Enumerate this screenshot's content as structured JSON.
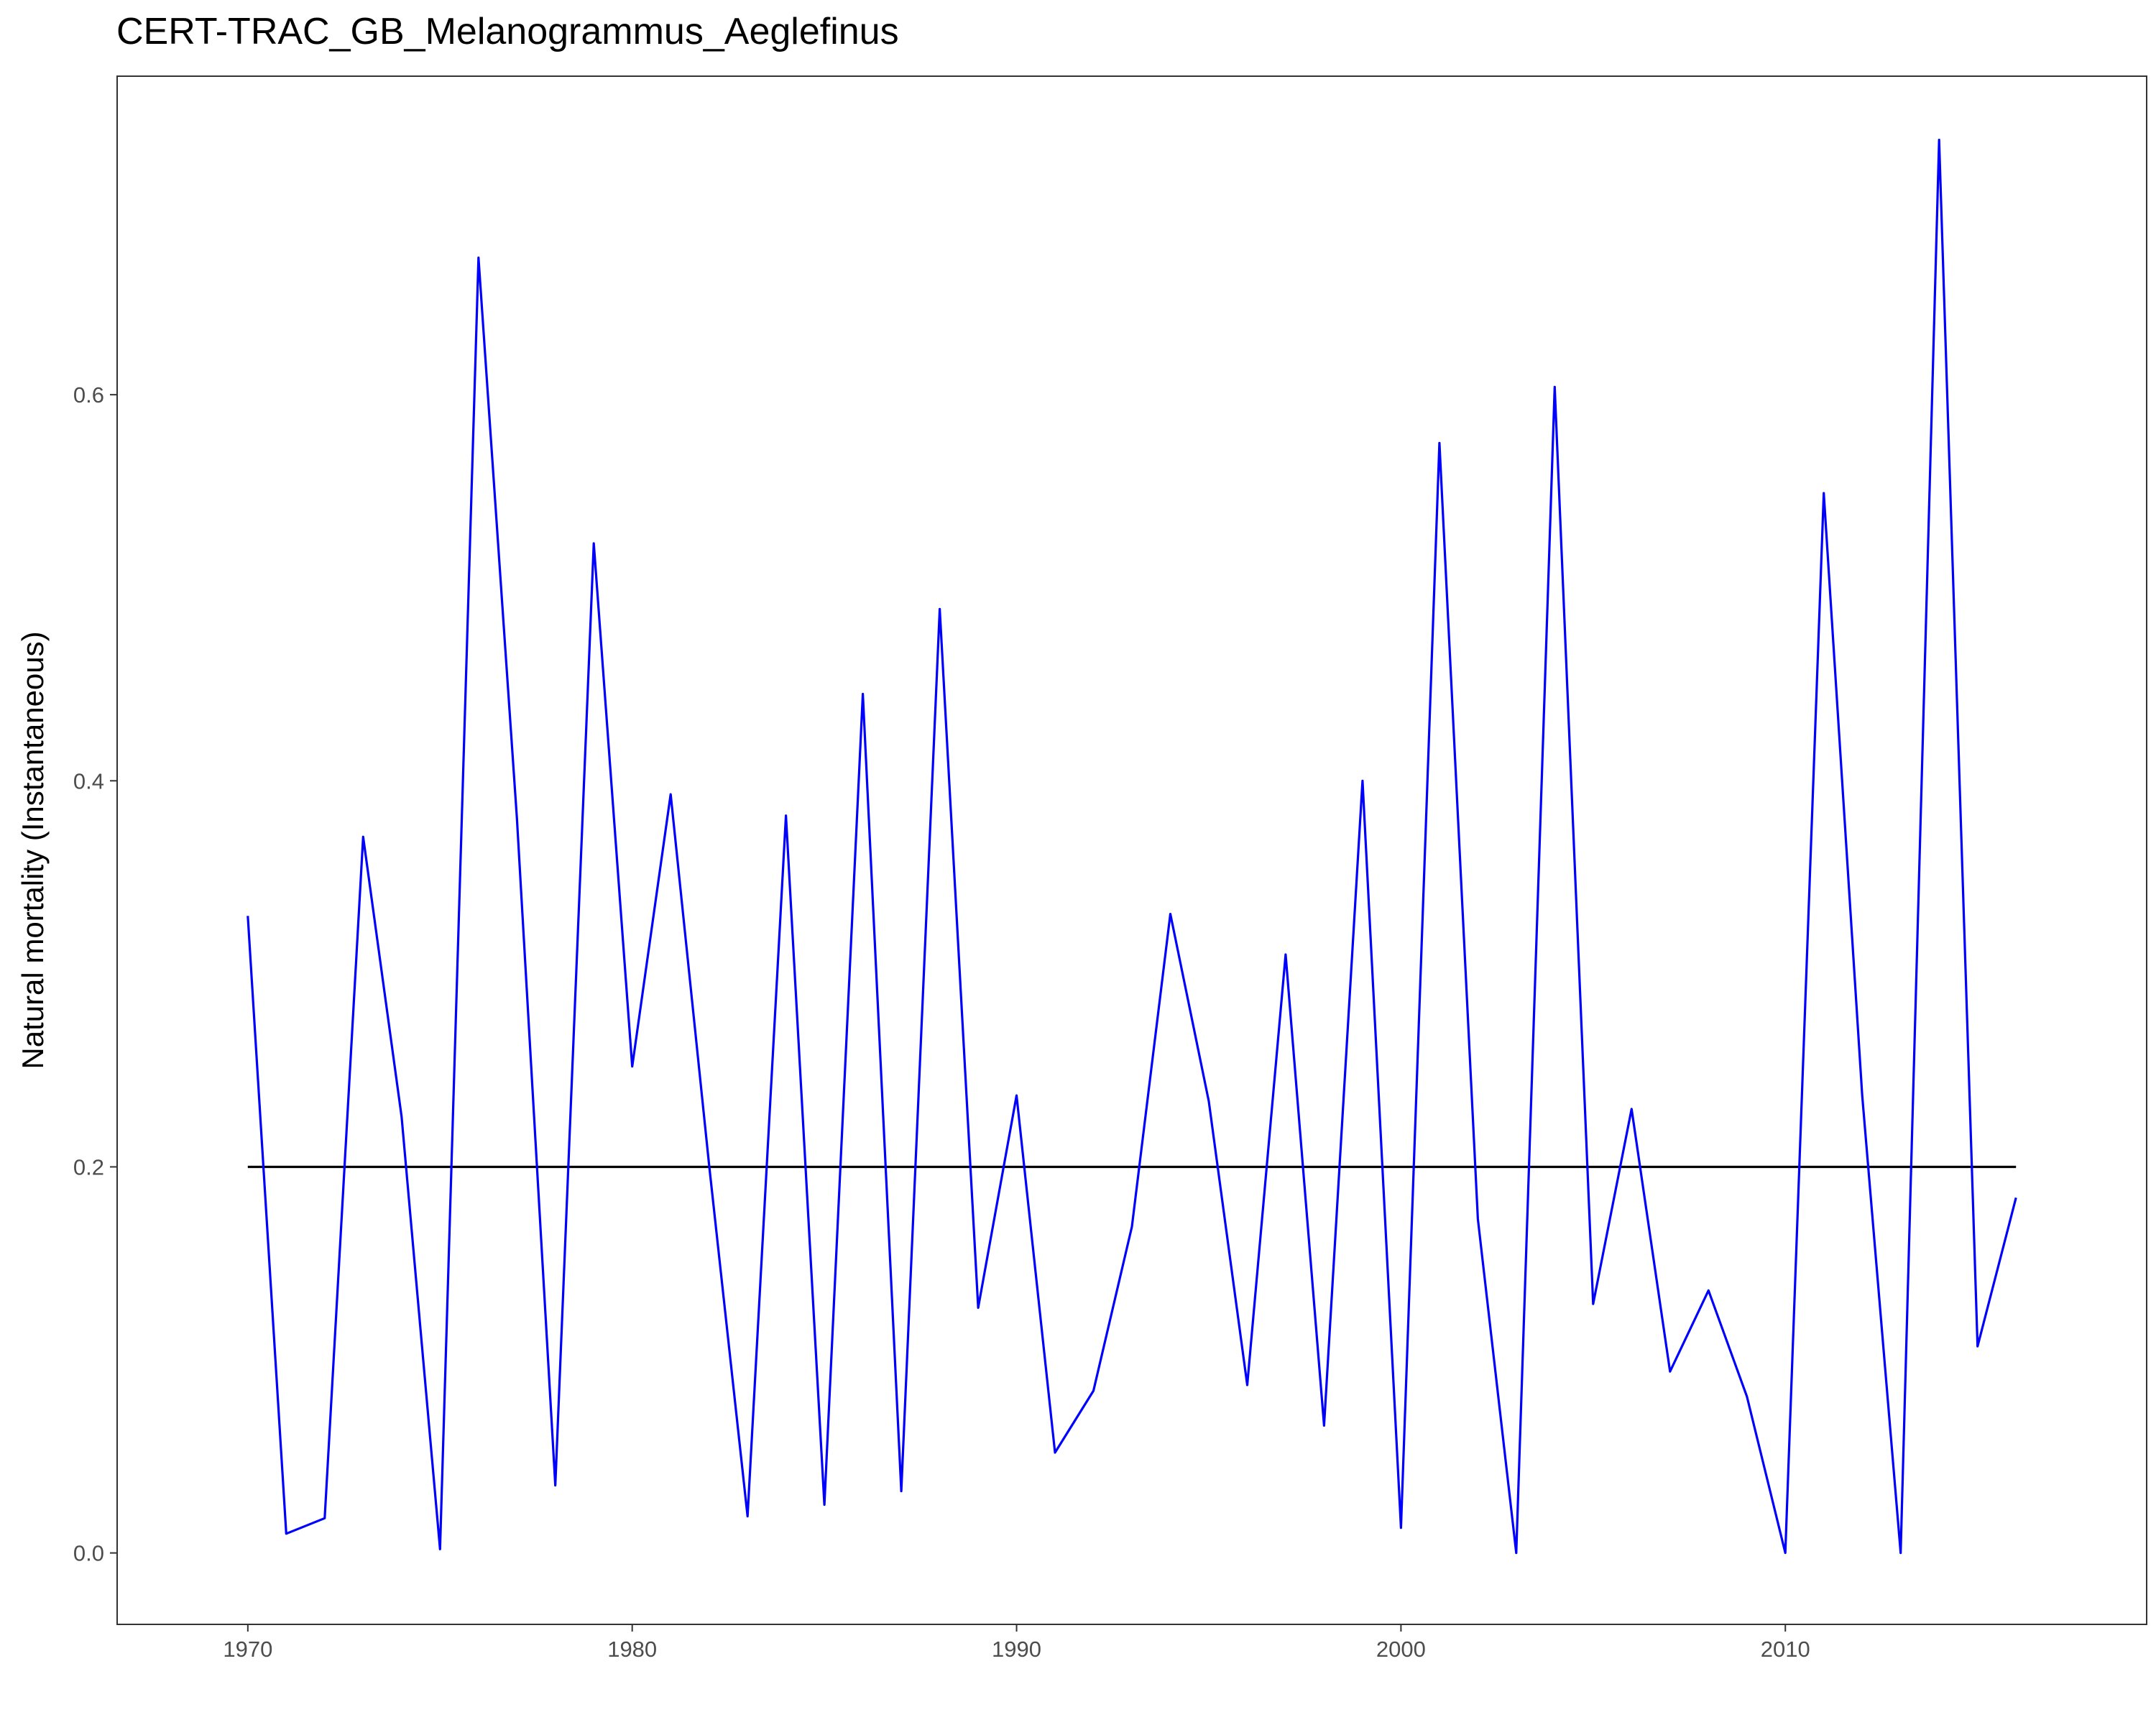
{
  "chart_data": {
    "type": "line",
    "title": "CERT-TRAC_GB_Melanogrammus_Aeglefinus",
    "xlabel": "",
    "ylabel": "Natural mortality (Instantaneous)",
    "xlim": [
      1966.6,
      2019.4
    ],
    "ylim": [
      -0.037,
      0.765
    ],
    "x_ticks": [
      1970,
      1980,
      1990,
      2000,
      2010
    ],
    "y_ticks": [
      0.0,
      0.2,
      0.4,
      0.6
    ],
    "y_tick_labels": [
      "0.0",
      "0.2",
      "0.4",
      "0.6"
    ],
    "grid": false,
    "legend": "none",
    "x": [
      1970,
      1971,
      1972,
      1973,
      1974,
      1975,
      1976,
      1977,
      1978,
      1979,
      1980,
      1981,
      1982,
      1983,
      1984,
      1985,
      1986,
      1987,
      1988,
      1989,
      1990,
      1991,
      1992,
      1993,
      1994,
      1995,
      1996,
      1997,
      1998,
      1999,
      2000,
      2001,
      2002,
      2003,
      2004,
      2005,
      2006,
      2007,
      2008,
      2009,
      2010,
      2011,
      2012,
      2013,
      2014,
      2015,
      2016
    ],
    "series": [
      {
        "color": "#0000ff",
        "values": [
          0.33,
          0.01,
          0.018,
          0.371,
          0.226,
          0.002,
          0.671,
          0.381,
          0.035,
          0.523,
          0.252,
          0.393,
          0.201,
          0.019,
          0.382,
          0.025,
          0.445,
          0.032,
          0.489,
          0.127,
          0.237,
          0.052,
          0.084,
          0.169,
          0.331,
          0.234,
          0.087,
          0.31,
          0.066,
          0.4,
          0.013,
          0.575,
          0.173,
          0.0,
          0.604,
          0.129,
          0.23,
          0.094,
          0.136,
          0.081,
          0.0,
          0.549,
          0.237,
          0.0,
          0.732,
          0.107,
          0.184
        ]
      },
      {
        "color": "#000000",
        "values": [
          0.2,
          0.2,
          0.2,
          0.2,
          0.2,
          0.2,
          0.2,
          0.2,
          0.2,
          0.2,
          0.2,
          0.2,
          0.2,
          0.2,
          0.2,
          0.2,
          0.2,
          0.2,
          0.2,
          0.2,
          0.2,
          0.2,
          0.2,
          0.2,
          0.2,
          0.2,
          0.2,
          0.2,
          0.2,
          0.2,
          0.2,
          0.2,
          0.2,
          0.2,
          0.2,
          0.2,
          0.2,
          0.2,
          0.2,
          0.2,
          0.2,
          0.2,
          0.2,
          0.2,
          0.2,
          0.2,
          0.2
        ]
      }
    ]
  }
}
